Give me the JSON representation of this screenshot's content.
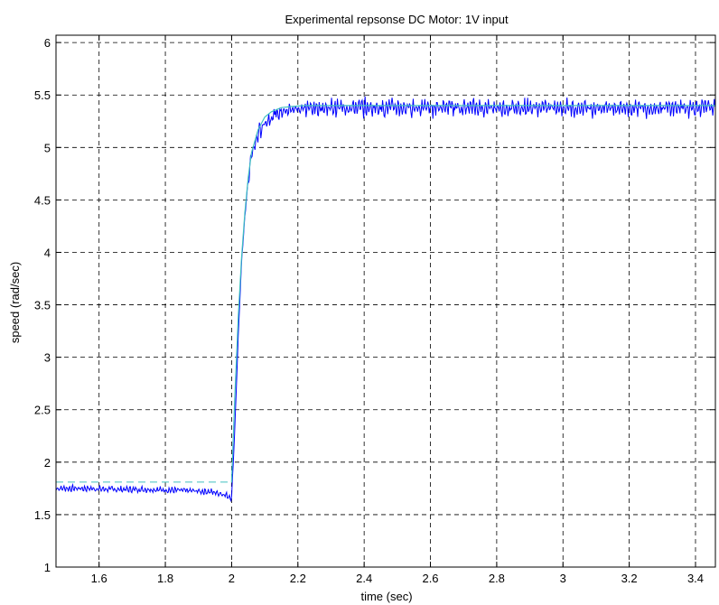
{
  "chart_data": {
    "type": "line",
    "title": "Experimental repsonse DC Motor:  1V input",
    "xlabel": "time (sec)",
    "ylabel": "speed (rad/sec)",
    "xlim": [
      1.47,
      3.46
    ],
    "ylim": [
      1,
      6.07
    ],
    "x_ticks": [
      1.6,
      1.8,
      2,
      2.2,
      2.4,
      2.6,
      2.8,
      3,
      3.2,
      3.4
    ],
    "x_tick_labels": [
      "1.6",
      "1.8",
      "2",
      "2.2",
      "2.4",
      "2.6",
      "2.8",
      "3",
      "3.2",
      "3.4"
    ],
    "y_ticks": [
      1,
      1.5,
      2,
      2.5,
      3,
      3.5,
      4,
      4.5,
      5,
      5.5,
      6
    ],
    "y_tick_labels": [
      "1",
      "1.5",
      "2",
      "2.5",
      "3",
      "3.5",
      "4",
      "4.5",
      "5",
      "5.5",
      "6"
    ],
    "grid": true,
    "grid_style": "dashed",
    "series": [
      {
        "kind": "model",
        "color": "#40c0c0",
        "x": [
          1.47,
          1.999,
          2.0,
          2.01,
          2.02,
          2.03,
          2.04,
          2.05,
          2.06,
          2.08,
          2.1,
          2.12,
          2.15,
          2.18,
          2.22,
          2.3,
          2.5,
          3.46
        ],
        "y": [
          1.81,
          1.81,
          1.81,
          2.65,
          3.38,
          3.95,
          4.38,
          4.71,
          4.95,
          5.17,
          5.29,
          5.34,
          5.38,
          5.39,
          5.4,
          5.4,
          5.4,
          5.4
        ]
      },
      {
        "kind": "measured",
        "color": "#0000ff",
        "x": [
          1.47,
          1.55,
          1.65,
          1.75,
          1.85,
          1.93,
          1.97,
          1.995,
          2.0,
          2.01,
          2.02,
          2.03,
          2.04,
          2.05,
          2.06,
          2.08,
          2.1,
          2.13,
          2.16,
          2.2,
          2.3,
          2.5,
          2.8,
          3.1,
          3.46
        ],
        "y": [
          1.75,
          1.75,
          1.74,
          1.74,
          1.73,
          1.72,
          1.7,
          1.67,
          1.66,
          2.35,
          3.2,
          3.9,
          4.35,
          4.68,
          4.92,
          5.12,
          5.24,
          5.31,
          5.35,
          5.37,
          5.38,
          5.38,
          5.38,
          5.38,
          5.38
        ],
        "ripple_amplitude": 0.07
      }
    ]
  }
}
